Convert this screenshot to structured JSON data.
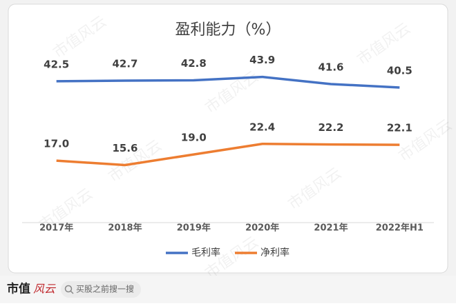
{
  "chart_data": {
    "type": "line",
    "title": "盈利能力（%）",
    "categories": [
      "2017年",
      "2018年",
      "2019年",
      "2020年",
      "2021年",
      "2022年H1"
    ],
    "series": [
      {
        "name": "毛利率",
        "color": "#4472c4",
        "values": [
          42.5,
          42.7,
          42.8,
          43.9,
          41.6,
          40.5
        ],
        "value_labels": [
          "42.5",
          "42.7",
          "42.8",
          "43.9",
          "41.6",
          "40.5"
        ]
      },
      {
        "name": "净利率",
        "color": "#ed7d31",
        "values": [
          17.0,
          15.6,
          19.0,
          22.4,
          22.2,
          22.1
        ],
        "value_labels": [
          "17.0",
          "15.6",
          "19.0",
          "22.4",
          "22.2",
          "22.1"
        ]
      }
    ],
    "ylim": [
      0,
      50
    ],
    "legend": "bottom"
  },
  "watermark": "市值风云",
  "footer": {
    "brand_main": "市值",
    "brand_logo": "风云",
    "search": "买股之前搜一搜"
  }
}
